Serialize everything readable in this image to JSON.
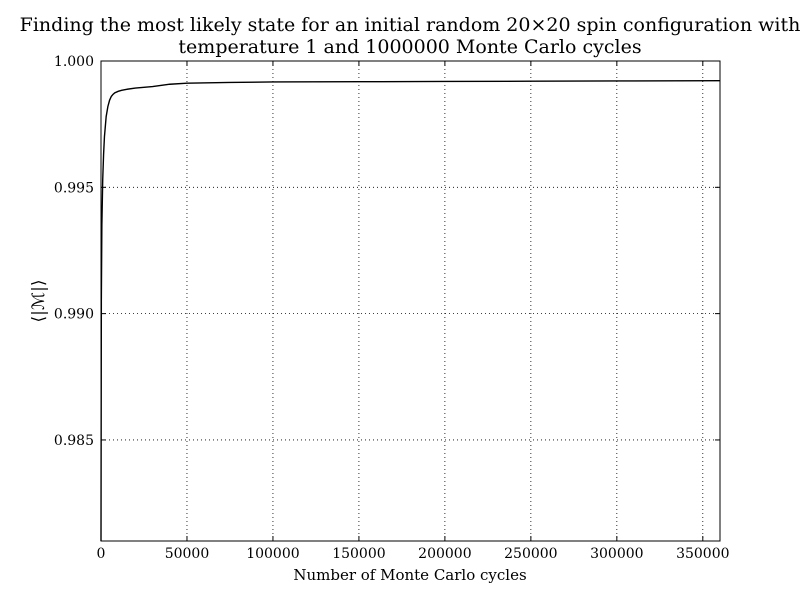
{
  "chart_data": {
    "type": "line",
    "title": [
      "Finding the most likely state for an initial random 20×20 spin configuration with",
      "temperature 1 and 1000000 Monte Carlo cycles"
    ],
    "xlabel": "Number of Monte Carlo cycles",
    "ylabel": "⟨|ℳ|⟩",
    "xlim": [
      0,
      360000
    ],
    "ylim": [
      0.981,
      1.0
    ],
    "grid": true,
    "x_ticks": [
      0,
      50000,
      100000,
      150000,
      200000,
      250000,
      300000,
      350000
    ],
    "x_tick_labels": [
      "0",
      "50000",
      "100000",
      "150000",
      "200000",
      "250000",
      "300000",
      "350000"
    ],
    "y_ticks": [
      0.985,
      0.99,
      0.995,
      1.0
    ],
    "y_tick_labels": [
      "0.985",
      "0.990",
      "0.995",
      "1.000"
    ],
    "series": [
      {
        "color": "#000000",
        "x": [
          1,
          200,
          500,
          1000,
          1500,
          2000,
          3000,
          4000,
          5000,
          6000,
          7000,
          8000,
          10000,
          12000,
          15000,
          20000,
          25000,
          30000,
          40000,
          50000,
          75000,
          100000,
          150000,
          200000,
          250000,
          300000,
          360000
        ],
        "y": [
          0.981,
          0.9905,
          0.9935,
          0.9953,
          0.9963,
          0.997,
          0.9978,
          0.9982,
          0.99845,
          0.9986,
          0.99868,
          0.99874,
          0.9988,
          0.99884,
          0.99888,
          0.99893,
          0.99896,
          0.99899,
          0.99908,
          0.99912,
          0.99915,
          0.99917,
          0.99918,
          0.99919,
          0.9992,
          0.99921,
          0.99922
        ]
      }
    ]
  }
}
